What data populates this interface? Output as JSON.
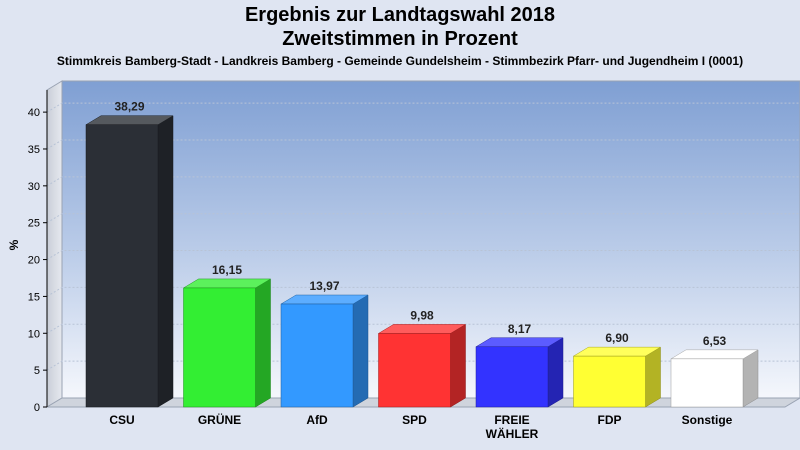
{
  "chart_data": {
    "type": "bar",
    "title": "Ergebnis zur Landtagswahl 2018",
    "subtitle_line": "Zweitstimmen in Prozent",
    "subtitle": "Stimmkreis Bamberg-Stadt - Landkreis Bamberg - Gemeinde Gundelsheim - Stimmbezirk Pfarr- und Jugendheim I (0001)",
    "xlabel": "",
    "ylabel": "%",
    "ylim": [
      0,
      43
    ],
    "yticks": [
      0,
      5,
      10,
      15,
      20,
      25,
      30,
      35,
      40
    ],
    "grid": true,
    "categories": [
      "CSU",
      "GRÜNE",
      "AfD",
      "SPD",
      "FREIE WÄHLER",
      "FDP",
      "Sonstige"
    ],
    "values": [
      38.29,
      16.15,
      13.97,
      9.98,
      8.17,
      6.9,
      6.53
    ],
    "value_labels": [
      "38,29",
      "16,15",
      "13,97",
      "9,98",
      "8,17",
      "6,90",
      "6,53"
    ],
    "colors": [
      "#2b2f36",
      "#33ee33",
      "#3399ff",
      "#ff3333",
      "#3333ff",
      "#ffff33",
      "#ffffff"
    ]
  }
}
